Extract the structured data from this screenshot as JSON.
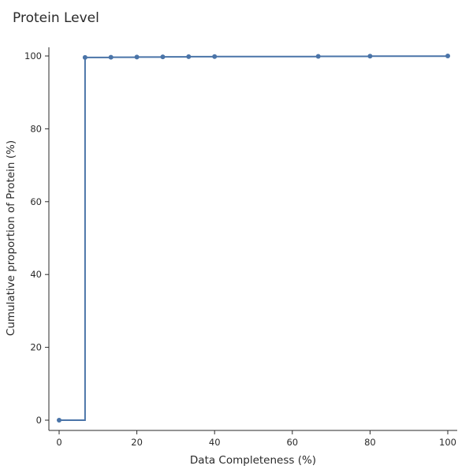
{
  "chart_data": {
    "type": "line",
    "step": true,
    "title": "Protein Level",
    "xlabel": "Data Completeness (%)",
    "ylabel": "Cumulative proportion of Protein (%)",
    "xlim": [
      0,
      100
    ],
    "ylim": [
      0,
      100
    ],
    "xticks": [
      0,
      20,
      40,
      60,
      80,
      100
    ],
    "yticks": [
      0,
      20,
      40,
      60,
      80,
      100
    ],
    "grid": false,
    "line_color": "#4a74a8",
    "series": [
      {
        "x": [
          0,
          6.67,
          13.33,
          20,
          26.67,
          33.33,
          40,
          66.67,
          80,
          100
        ],
        "y": [
          0,
          99.6,
          99.65,
          99.7,
          99.75,
          99.8,
          99.85,
          99.9,
          99.95,
          100
        ]
      }
    ]
  }
}
